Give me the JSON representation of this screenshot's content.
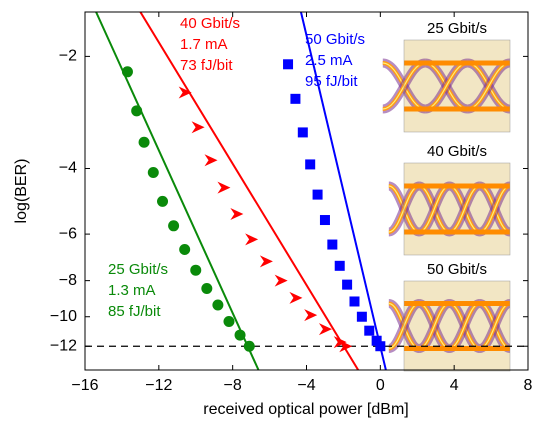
{
  "chart_data": {
    "type": "scatter",
    "xlabel": "received optical power [dBm]",
    "ylabel": "log(BER)",
    "yscale": "neglog",
    "xlim": [
      -16,
      8
    ],
    "ylim": [
      -1.52,
      -13.9
    ],
    "xticks": [
      {
        "value": -16,
        "label": "−16"
      },
      {
        "value": -12,
        "label": "−12"
      },
      {
        "value": -8,
        "label": "−8"
      },
      {
        "value": -4,
        "label": "−4"
      },
      0,
      4,
      8
    ],
    "yticks": [
      {
        "value": -2,
        "label": "−2"
      },
      {
        "value": -4,
        "label": "−4"
      },
      {
        "value": -6,
        "label": "−6"
      },
      {
        "value": -8,
        "label": "−8"
      },
      {
        "value": -10,
        "label": "−10"
      },
      {
        "value": -12,
        "label": "−12"
      }
    ],
    "reference_line": -12,
    "series": [
      {
        "name": "25 Gbit/s",
        "color": "#0a8a0a",
        "marker": "circle",
        "x": [
          -13.7,
          -13.2,
          -12.8,
          -12.3,
          -11.8,
          -11.2,
          -10.6,
          -10.0,
          -9.4,
          -8.8,
          -8.2,
          -7.6,
          -7.1
        ],
        "values": [
          -2.2,
          -2.8,
          -3.4,
          -4.1,
          -4.9,
          -5.7,
          -6.6,
          -7.5,
          -8.4,
          -9.3,
          -10.3,
          -11.2,
          -12
        ],
        "fit": {
          "x": [
            -15.4,
            -6.6
          ],
          "values": [
            -1.52,
            -13.9
          ]
        },
        "annotation": [
          "25 Gbit/s",
          "1.3 mA",
          "85 fJ/bit"
        ]
      },
      {
        "name": "40 Gbit/s",
        "color": "#ff0000",
        "marker": "triangle",
        "x": [
          -10.6,
          -9.9,
          -9.2,
          -8.5,
          -7.8,
          -7.0,
          -6.2,
          -5.4,
          -4.6,
          -3.8,
          -3.0,
          -2.2,
          -1.9
        ],
        "values": [
          -2.5,
          -3.1,
          -3.8,
          -4.5,
          -5.3,
          -6.2,
          -7.1,
          -8.0,
          -8.9,
          -9.9,
          -10.8,
          -11.7,
          -12
        ],
        "fit": {
          "x": [
            -13.0,
            -1.2
          ],
          "values": [
            -1.52,
            -13.9
          ]
        },
        "annotation": [
          "40 Gbit/s",
          "1.7 mA",
          "73 fJ/bit"
        ]
      },
      {
        "name": "50 Gbit/s",
        "color": "#0000ff",
        "marker": "square",
        "x": [
          -5.0,
          -4.6,
          -4.2,
          -3.8,
          -3.4,
          -3.0,
          -2.6,
          -2.2,
          -1.8,
          -1.4,
          -1.0,
          -0.6,
          -0.2,
          0
        ],
        "values": [
          -2.1,
          -2.6,
          -3.2,
          -3.9,
          -4.7,
          -5.5,
          -6.4,
          -7.3,
          -8.2,
          -9.1,
          -10.0,
          -10.9,
          -11.6,
          -12
        ],
        "fit": {
          "x": [
            -4.3,
            0.3
          ],
          "values": [
            -1.52,
            -13.9
          ]
        },
        "annotation": [
          "50 Gbit/s",
          "2.5 mA",
          "95 fJ/bit"
        ]
      }
    ],
    "insets": [
      {
        "label": "25 Gbit/s"
      },
      {
        "label": "40 Gbit/s"
      },
      {
        "label": "50 Gbit/s"
      }
    ]
  }
}
